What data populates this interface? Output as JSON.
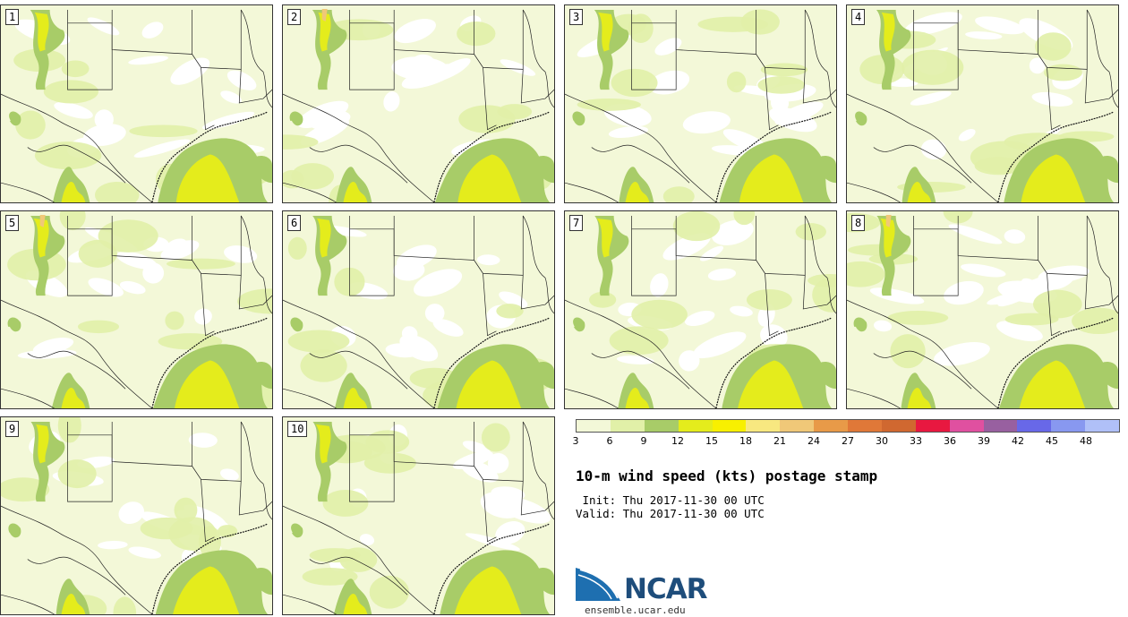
{
  "panels": [
    {
      "label": "1"
    },
    {
      "label": "2"
    },
    {
      "label": "3"
    },
    {
      "label": "4"
    },
    {
      "label": "5"
    },
    {
      "label": "6"
    },
    {
      "label": "7"
    },
    {
      "label": "8"
    },
    {
      "label": "9"
    },
    {
      "label": "10"
    }
  ],
  "colorbar": {
    "colors": [
      "#f3f8d8",
      "#e1f0a8",
      "#a8cc68",
      "#e4ec1c",
      "#f8f000",
      "#f8e880",
      "#f0c878",
      "#e89a48",
      "#e07838",
      "#d06830",
      "#e81840",
      "#e050a0",
      "#9860a0",
      "#6868e8",
      "#8898f0",
      "#b0c0f8"
    ],
    "ticks": [
      "3",
      "6",
      "9",
      "12",
      "15",
      "18",
      "21",
      "24",
      "27",
      "30",
      "33",
      "36",
      "39",
      "42",
      "45",
      "48"
    ]
  },
  "title": "10-m wind speed (kts) postage stamp",
  "init_line": " Init: Thu 2017-11-30 00 UTC",
  "valid_line": "Valid: Thu 2017-11-30 00 UTC",
  "logo": {
    "text": "NCAR",
    "url": "ensemble.ucar.edu",
    "brand_color": "#1e6fb0"
  }
}
